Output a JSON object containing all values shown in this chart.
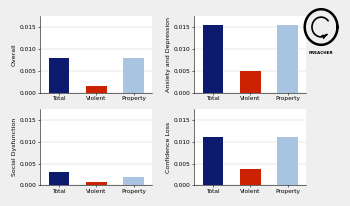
{
  "panels": [
    {
      "ylabel": "Overall",
      "bars": [
        {
          "label": "Total",
          "value": 0.008,
          "color": "#0d1b6e"
        },
        {
          "label": "Violent",
          "value": 0.0015,
          "color": "#cc2200"
        },
        {
          "label": "Property",
          "value": 0.008,
          "color": "#a8c4e0"
        }
      ]
    },
    {
      "ylabel": "Anxiety and Depression",
      "bars": [
        {
          "label": "Total",
          "value": 0.0155,
          "color": "#0d1b6e"
        },
        {
          "label": "Violent",
          "value": 0.005,
          "color": "#cc2200"
        },
        {
          "label": "Property",
          "value": 0.0155,
          "color": "#a8c4e0"
        }
      ]
    },
    {
      "ylabel": "Social Dysfunction",
      "bars": [
        {
          "label": "Total",
          "value": 0.003,
          "color": "#0d1b6e"
        },
        {
          "label": "Violent",
          "value": 0.0007,
          "color": "#cc2200"
        },
        {
          "label": "Property",
          "value": 0.002,
          "color": "#a8c4e0"
        }
      ]
    },
    {
      "ylabel": "Confidence Loss",
      "bars": [
        {
          "label": "Total",
          "value": 0.011,
          "color": "#0d1b6e"
        },
        {
          "label": "Violent",
          "value": 0.0038,
          "color": "#cc2200"
        },
        {
          "label": "Property",
          "value": 0.011,
          "color": "#a8c4e0"
        }
      ]
    }
  ],
  "ylim": [
    0,
    0.0175
  ],
  "yticks": [
    0.0,
    0.005,
    0.01,
    0.015
  ],
  "ytick_labels": [
    "0.000",
    "0.005",
    "0.010",
    "0.015"
  ],
  "bg_color": "#efefef",
  "panel_bg": "#ffffff",
  "tick_fontsize": 4.2,
  "label_fontsize": 4.5
}
